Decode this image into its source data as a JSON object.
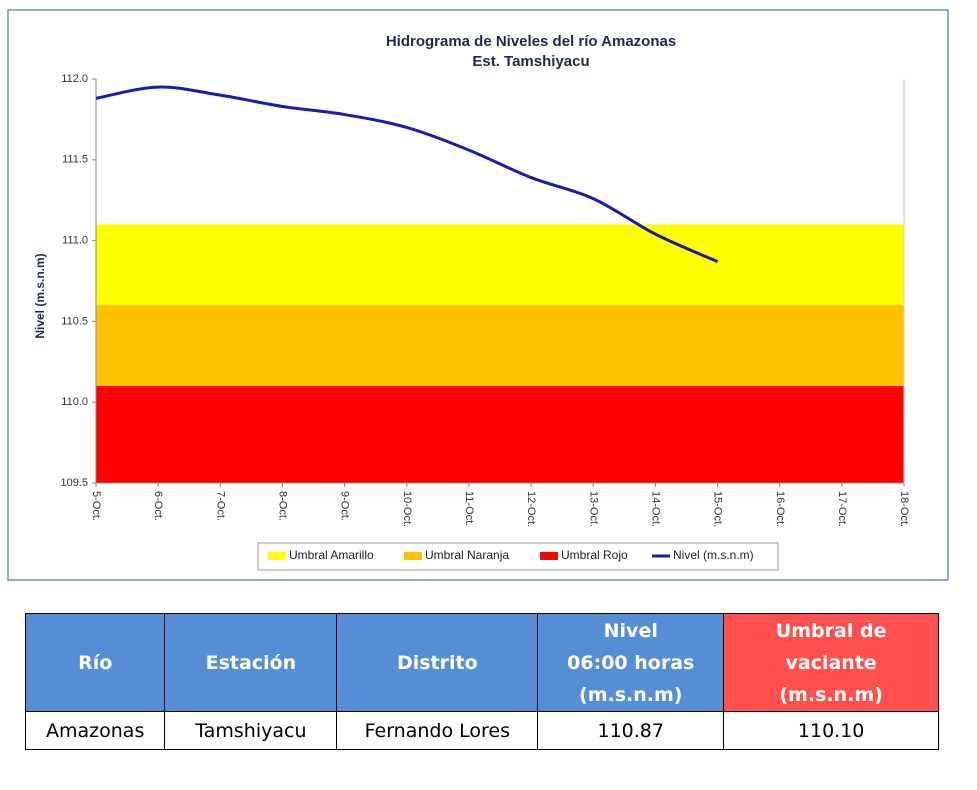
{
  "chart_data": {
    "type": "line",
    "title": "Hidrograma de Niveles del río Amazonas",
    "subtitle": "Est. Tamshiyacu",
    "y_label": "Nivel (m.s.n.m)",
    "categories": [
      "5-Oct.",
      "6-Oct.",
      "7-Oct.",
      "8-Oct.",
      "9-Oct.",
      "10-Oct.",
      "11-Oct.",
      "12-Oct.",
      "13-Oct.",
      "14-Oct.",
      "15-Oct.",
      "16-Oct.",
      "17-Oct.",
      "18-Oct."
    ],
    "bands": [
      {
        "name": "Umbral Amarillo",
        "color": "#ffff00",
        "from": 110.6,
        "to": 111.1
      },
      {
        "name": "Umbral Naranja",
        "color": "#ffc000",
        "from": 110.1,
        "to": 110.6
      },
      {
        "name": "Umbral Rojo",
        "color": "#ff0000",
        "from": 109.5,
        "to": 110.1
      }
    ],
    "series": [
      {
        "name": "Nivel (m.s.n.m)",
        "color": "#1a1ab4",
        "values": [
          111.88,
          111.95,
          111.9,
          111.83,
          111.78,
          111.7,
          111.56,
          111.39,
          111.26,
          111.04,
          110.87,
          null,
          null,
          null
        ]
      }
    ],
    "ylim": [
      109.5,
      112.0
    ],
    "yticks": [
      109.5,
      {
        "value": 110.0,
        "label": "110.0"
      },
      110.5,
      {
        "value": 111.0,
        "label": "111.0"
      },
      111.5,
      {
        "value": 112.0,
        "label": "112.0"
      }
    ],
    "legend": "bottom"
  },
  "table": {
    "header": [
      [
        "Río"
      ],
      [
        "Estación"
      ],
      [
        "Distrito"
      ],
      [
        "Nivel",
        "06:00 horas",
        "(m.s.n.m)"
      ],
      [
        "Umbral de",
        "vaciante",
        "(m.s.n.m)"
      ]
    ],
    "rows": [
      [
        "Amazonas",
        "Tamshiyacu",
        "Fernando Lores",
        "110.87",
        "110.10"
      ]
    ]
  }
}
